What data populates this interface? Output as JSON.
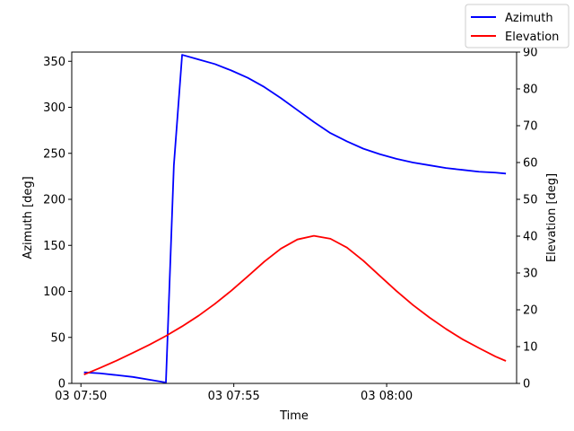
{
  "chart_data": {
    "type": "line",
    "title": "",
    "xlabel": "Time",
    "ylabel_left": "Azimuth [deg]",
    "ylabel_right": "Elevation [deg]",
    "x_unit": "minutes after 03 07:50",
    "xlim": [
      -0.3,
      14.25
    ],
    "ylim_left": [
      0,
      360
    ],
    "ylim_right": [
      0,
      90
    ],
    "x_ticks": [
      {
        "value": 0,
        "label": "03 07:50"
      },
      {
        "value": 5,
        "label": "03 07:55"
      },
      {
        "value": 10,
        "label": "03 08:00"
      }
    ],
    "y_ticks_left": [
      0,
      50,
      100,
      150,
      200,
      250,
      300,
      350
    ],
    "y_ticks_right": [
      0,
      10,
      20,
      30,
      40,
      50,
      60,
      70,
      80,
      90
    ],
    "grid": false,
    "legend": {
      "placement": "top-right, outside axes"
    },
    "series": [
      {
        "name": "Azimuth",
        "axis": "left",
        "color": "#0000ff",
        "points": [
          [
            0.1,
            12
          ],
          [
            0.62,
            11
          ],
          [
            1.17,
            9
          ],
          [
            1.7,
            7
          ],
          [
            2.24,
            4
          ],
          [
            2.78,
            1
          ],
          [
            3.04,
            237
          ],
          [
            3.31,
            357
          ],
          [
            3.85,
            352
          ],
          [
            4.38,
            347
          ],
          [
            4.92,
            340
          ],
          [
            5.46,
            332
          ],
          [
            6.0,
            322
          ],
          [
            6.54,
            310
          ],
          [
            7.08,
            297
          ],
          [
            7.62,
            284
          ],
          [
            8.16,
            272
          ],
          [
            8.7,
            263
          ],
          [
            9.24,
            255
          ],
          [
            9.78,
            249
          ],
          [
            10.32,
            244
          ],
          [
            10.86,
            240
          ],
          [
            11.4,
            237
          ],
          [
            11.94,
            234
          ],
          [
            12.48,
            232
          ],
          [
            13.02,
            230
          ],
          [
            13.56,
            229
          ],
          [
            13.9,
            228
          ]
        ]
      },
      {
        "name": "Elevation",
        "axis": "right",
        "color": "#ff0000",
        "points": [
          [
            0.1,
            2.4
          ],
          [
            0.62,
            4.2
          ],
          [
            1.17,
            6.2
          ],
          [
            1.7,
            8.3
          ],
          [
            2.24,
            10.5
          ],
          [
            2.78,
            12.9
          ],
          [
            3.31,
            15.5
          ],
          [
            3.85,
            18.4
          ],
          [
            4.38,
            21.6
          ],
          [
            4.92,
            25.2
          ],
          [
            5.46,
            29.1
          ],
          [
            6.0,
            33.1
          ],
          [
            6.54,
            36.6
          ],
          [
            7.08,
            39.1
          ],
          [
            7.62,
            40.1
          ],
          [
            8.16,
            39.3
          ],
          [
            8.7,
            36.9
          ],
          [
            9.24,
            33.3
          ],
          [
            9.78,
            29.2
          ],
          [
            10.32,
            25.1
          ],
          [
            10.86,
            21.3
          ],
          [
            11.4,
            17.9
          ],
          [
            11.94,
            14.8
          ],
          [
            12.48,
            12.0
          ],
          [
            13.02,
            9.6
          ],
          [
            13.56,
            7.3
          ],
          [
            13.9,
            6.1
          ]
        ]
      }
    ]
  }
}
